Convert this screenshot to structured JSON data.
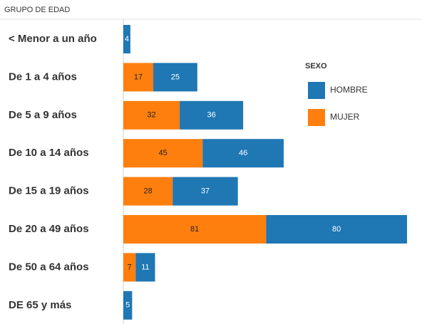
{
  "chart_data": {
    "type": "bar",
    "orientation": "horizontal",
    "stacked": true,
    "y_label": "GRUPO DE EDAD",
    "legend_title": "SEXO",
    "categories": [
      "< Menor a un año",
      "De 1 a 4 años",
      "De 5 a 9 años",
      "De 10 a 14 años",
      "De 15 a 19 años",
      "De 20 a 49 años",
      "De 50 a 64 años",
      "DE 65 y más"
    ],
    "series": [
      {
        "name": "HOMBRE",
        "color": "#1f77b4",
        "values": [
          4,
          25,
          36,
          46,
          37,
          80,
          11,
          5
        ]
      },
      {
        "name": "MUJER",
        "color": "#ff7f0e",
        "values": [
          null,
          17,
          32,
          45,
          28,
          81,
          7,
          null
        ]
      }
    ]
  }
}
